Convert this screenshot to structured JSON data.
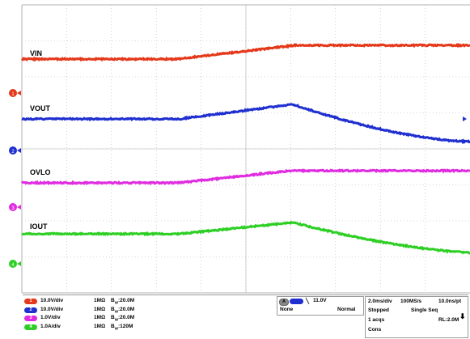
{
  "channels": [
    {
      "name": "VIN",
      "color": "#e5381a",
      "marker": "1",
      "scale": "10.0V/div",
      "input": "1MΩ",
      "bw": "20.0M",
      "bw_prefix": "B",
      "bw_sub": "W"
    },
    {
      "name": "VOUT",
      "color": "#1f2fd0",
      "marker": "2",
      "scale": "10.0V/div",
      "input": "1MΩ",
      "bw": "20.0M",
      "bw_prefix": "B",
      "bw_sub": "W"
    },
    {
      "name": "OVLO",
      "color": "#e02ce0",
      "marker": "3",
      "scale": "1.0V/div",
      "input": "1MΩ",
      "bw": "20.0M",
      "bw_prefix": "B",
      "bw_sub": "W"
    },
    {
      "name": "IOUT",
      "color": "#2ecf25",
      "marker": "4",
      "scale": "1.0A/div",
      "input": "1MΩ",
      "bw": "120M",
      "bw_prefix": "B",
      "bw_sub": "W"
    }
  ],
  "trigger": {
    "source": "A",
    "channel_pill": "",
    "slope_icon": "falling-edge-icon",
    "level": "11.0V",
    "coupling": "None",
    "mode": "Normal"
  },
  "acquisition": {
    "timebase": "2.0ms/div",
    "sample_rate": "100MS/s",
    "resolution": "10.0ns/pt",
    "state": "Stopped",
    "run_mode": "Single Seq",
    "acqs": "1 acqs",
    "record": "RL:2.0M",
    "cal": "Cons"
  },
  "colors": {
    "grid": "#b0b0b0",
    "trigger_marker": "#f29a1c",
    "screen_bg": "#ffffff"
  }
}
